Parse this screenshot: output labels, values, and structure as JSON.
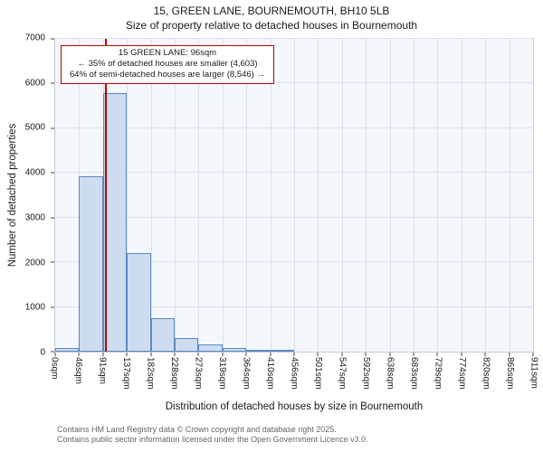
{
  "title": "15, GREEN LANE, BOURNEMOUTH, BH10 5LB",
  "subtitle": "Size of property relative to detached houses in Bournemouth",
  "chart_data": {
    "type": "bar",
    "title": "15, GREEN LANE, BOURNEMOUTH, BH10 5LB",
    "subtitle": "Size of property relative to detached houses in Bournemouth",
    "xlabel": "Distribution of detached houses by size in Bournemouth",
    "ylabel": "Number of detached properties",
    "ylim": [
      0,
      7000
    ],
    "y_ticks": [
      0,
      1000,
      2000,
      3000,
      4000,
      5000,
      6000,
      7000
    ],
    "x_max_sqm": 911,
    "x_tick_labels": [
      "0sqm",
      "46sqm",
      "91sqm",
      "137sqm",
      "182sqm",
      "228sqm",
      "273sqm",
      "319sqm",
      "364sqm",
      "410sqm",
      "456sqm",
      "501sqm",
      "547sqm",
      "592sqm",
      "638sqm",
      "683sqm",
      "729sqm",
      "774sqm",
      "820sqm",
      "865sqm",
      "911sqm"
    ],
    "values": [
      90,
      3920,
      5780,
      2200,
      750,
      310,
      160,
      80,
      40,
      30,
      0,
      0,
      0,
      0,
      0,
      0,
      0,
      0,
      0,
      0
    ],
    "grid": true,
    "legend": "none",
    "marker": {
      "value_sqm": 96,
      "color": "#bb0000"
    },
    "annotation": {
      "line1": "15 GREEN LANE: 96sqm",
      "line2": "← 35% of detached houses are smaller (4,603)",
      "line3": "64% of semi-detached houses are larger (8,546) →"
    },
    "colors": {
      "bar_fill": "#cddcf0",
      "bar_edge": "#5b87c1",
      "marker_line": "#bb0000",
      "grid": "#d9e1ee",
      "plot_bg": "#f4f7fc"
    }
  },
  "footer": {
    "line1": "Contains HM Land Registry data © Crown copyright and database right 2025.",
    "line2": "Contains public sector information licensed under the Open Government Licence v3.0."
  }
}
